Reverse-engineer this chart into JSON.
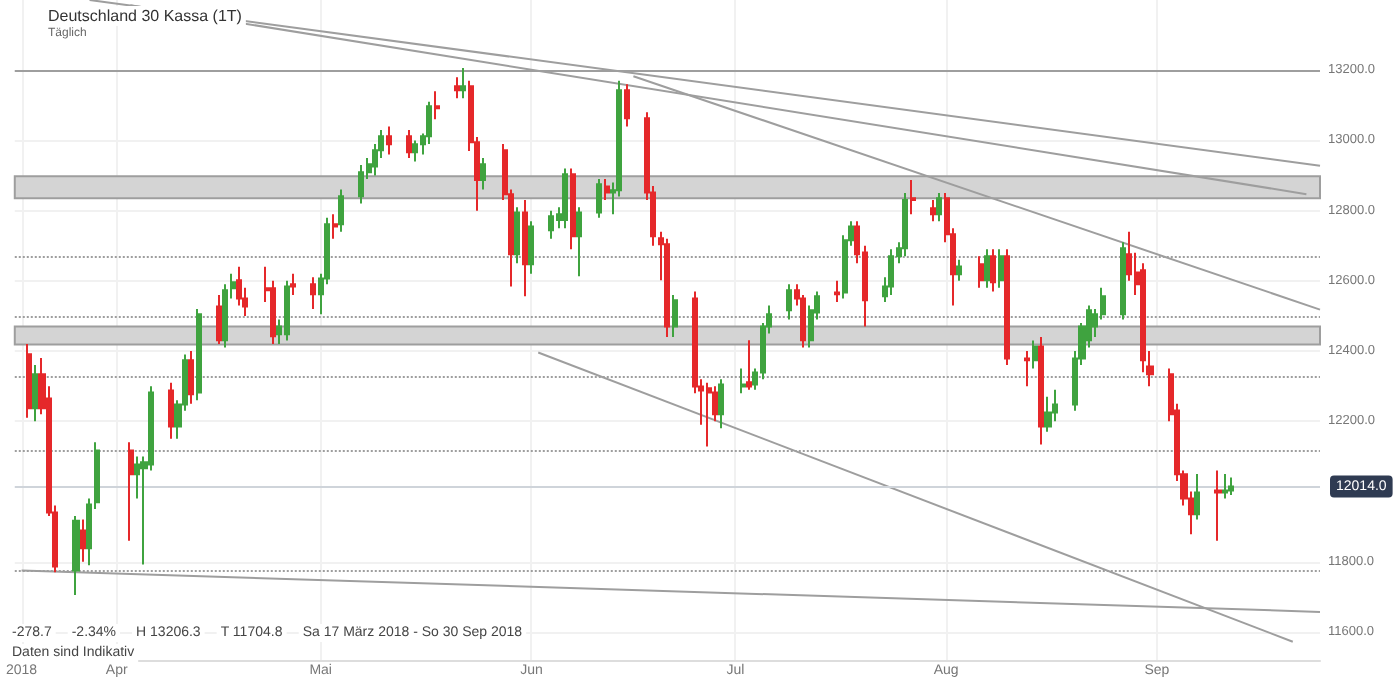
{
  "chart_data": {
    "type": "candlestick",
    "title": "Deutschland 30 Kassa (1T)",
    "subtitle": "Täglich",
    "annotations": [
      "-278.7",
      "-2.34%",
      "H 13206.3",
      "T 11704.8",
      "Sa 17 März 2018 - So 30 Sep 2018",
      "Daten sind Indikativ"
    ],
    "xlim": [
      "2018-03-17",
      "2018-09-25"
    ],
    "xticks": [
      {
        "value": "2018-03-18",
        "label": "2018"
      },
      {
        "value": "2018-04-01",
        "label": "Apr"
      },
      {
        "value": "2018-05-01",
        "label": "Mai"
      },
      {
        "value": "2018-06-01",
        "label": "Jun"
      },
      {
        "value": "2018-07-01",
        "label": "Jul"
      },
      {
        "value": "2018-08-01",
        "label": "Aug"
      },
      {
        "value": "2018-09-01",
        "label": "Sep"
      }
    ],
    "ylim": [
      11520,
      13400
    ],
    "yticks": [
      {
        "value": 11600,
        "label": "11600.0"
      },
      {
        "value": 11800,
        "label": "11800.0"
      },
      {
        "value": 12200,
        "label": "12200.0"
      },
      {
        "value": 12400,
        "label": "12400.0"
      },
      {
        "value": 12600,
        "label": "12600.0"
      },
      {
        "value": 12800,
        "label": "12800.0"
      },
      {
        "value": 13000,
        "label": "13000.0"
      },
      {
        "value": 13200,
        "label": "13200.0"
      }
    ],
    "grid": true,
    "series": [
      {
        "x": [
          "2018-03-19",
          "2018-03-20",
          "2018-03-21",
          "2018-03-22",
          "2018-03-23",
          "2018-03-26",
          "2018-03-27",
          "2018-03-28",
          "2018-03-29",
          "2018-04-03",
          "2018-04-04",
          "2018-04-05",
          "2018-04-06",
          "2018-04-09",
          "2018-04-10",
          "2018-04-11",
          "2018-04-12",
          "2018-04-13",
          "2018-04-16",
          "2018-04-17",
          "2018-04-18",
          "2018-04-19",
          "2018-04-20",
          "2018-04-23",
          "2018-04-24",
          "2018-04-25",
          "2018-04-26",
          "2018-04-27",
          "2018-04-30",
          "2018-05-01",
          "2018-05-02",
          "2018-05-03",
          "2018-05-04",
          "2018-05-07",
          "2018-05-08",
          "2018-05-09",
          "2018-05-10",
          "2018-05-11",
          "2018-05-14",
          "2018-05-15",
          "2018-05-16",
          "2018-05-17",
          "2018-05-18",
          "2018-05-21",
          "2018-05-22",
          "2018-05-23",
          "2018-05-24",
          "2018-05-25",
          "2018-05-28",
          "2018-05-29",
          "2018-05-30",
          "2018-05-31",
          "2018-06-01",
          "2018-06-04",
          "2018-06-05",
          "2018-06-06",
          "2018-06-07",
          "2018-06-08",
          "2018-06-11",
          "2018-06-12",
          "2018-06-13",
          "2018-06-14",
          "2018-06-15",
          "2018-06-18",
          "2018-06-19",
          "2018-06-20",
          "2018-06-21",
          "2018-06-22",
          "2018-06-25",
          "2018-06-26",
          "2018-06-27",
          "2018-06-28",
          "2018-06-29",
          "2018-07-02",
          "2018-07-03",
          "2018-07-04",
          "2018-07-05",
          "2018-07-06",
          "2018-07-09",
          "2018-07-10",
          "2018-07-11",
          "2018-07-12",
          "2018-07-13",
          "2018-07-16",
          "2018-07-17",
          "2018-07-18",
          "2018-07-19",
          "2018-07-20",
          "2018-07-23",
          "2018-07-24",
          "2018-07-25",
          "2018-07-26",
          "2018-07-27",
          "2018-07-30",
          "2018-07-31",
          "2018-08-01",
          "2018-08-02",
          "2018-08-03",
          "2018-08-06",
          "2018-08-07",
          "2018-08-08",
          "2018-08-09",
          "2018-08-10",
          "2018-08-13",
          "2018-08-14",
          "2018-08-15",
          "2018-08-16",
          "2018-08-17",
          "2018-08-20",
          "2018-08-21",
          "2018-08-22",
          "2018-08-23",
          "2018-08-24",
          "2018-08-27",
          "2018-08-28",
          "2018-08-29",
          "2018-08-30",
          "2018-08-31",
          "2018-09-03",
          "2018-09-04",
          "2018-09-05",
          "2018-09-06",
          "2018-09-07",
          "2018-09-10",
          "2018-09-11",
          "2018-09-12"
        ],
        "ohlc": [
          [
            12391,
            12420,
            12210,
            12237
          ],
          [
            12237,
            12360,
            12200,
            12334
          ],
          [
            12334,
            12380,
            12220,
            12237
          ],
          [
            12265,
            12300,
            11930,
            11940
          ],
          [
            11940,
            11960,
            11770,
            11786
          ],
          [
            11775,
            11930,
            11705,
            11917
          ],
          [
            11889,
            11920,
            11800,
            11838
          ],
          [
            11838,
            11980,
            11790,
            11963
          ],
          [
            11969,
            12140,
            11950,
            12117
          ],
          [
            12117,
            12140,
            11860,
            12049
          ],
          [
            12049,
            12100,
            11980,
            12077
          ],
          [
            12066,
            12100,
            11792,
            12083
          ],
          [
            12077,
            12300,
            12060,
            12282
          ],
          [
            12288,
            12310,
            12150,
            12185
          ],
          [
            12185,
            12260,
            12150,
            12248
          ],
          [
            12248,
            12390,
            12230,
            12374
          ],
          [
            12374,
            12400,
            12250,
            12277
          ],
          [
            12282,
            12520,
            12260,
            12505
          ],
          [
            12527,
            12560,
            12420,
            12431
          ],
          [
            12431,
            12590,
            12410,
            12573
          ],
          [
            12579,
            12620,
            12550,
            12596
          ],
          [
            12602,
            12640,
            12530,
            12550
          ],
          [
            12550,
            12580,
            12500,
            12527
          ],
          [
            12579,
            12640,
            12540,
            12573
          ],
          [
            12579,
            12600,
            12420,
            12442
          ],
          [
            12448,
            12490,
            12420,
            12470
          ],
          [
            12448,
            12600,
            12430,
            12584
          ],
          [
            12590,
            12620,
            12560,
            12584
          ],
          [
            12590,
            12610,
            12520,
            12562
          ],
          [
            12562,
            12620,
            12505,
            12607
          ],
          [
            12607,
            12780,
            12590,
            12761
          ],
          [
            12761,
            12790,
            12720,
            12755
          ],
          [
            12761,
            12860,
            12740,
            12841
          ],
          [
            12841,
            12930,
            12820,
            12909
          ],
          [
            12909,
            12950,
            12890,
            12932
          ],
          [
            12926,
            12990,
            12900,
            12972
          ],
          [
            12972,
            13030,
            12950,
            13012
          ],
          [
            13012,
            13040,
            12960,
            12989
          ],
          [
            13012,
            13030,
            12950,
            12966
          ],
          [
            12966,
            13000,
            12940,
            12989
          ],
          [
            12989,
            13020,
            12960,
            13012
          ],
          [
            13012,
            13110,
            12990,
            13097
          ],
          [
            13097,
            13140,
            13060,
            13092
          ],
          [
            13154,
            13180,
            13120,
            13143
          ],
          [
            13143,
            13206,
            13120,
            13154
          ],
          [
            13154,
            13170,
            12970,
            12995
          ],
          [
            12995,
            13010,
            12800,
            12887
          ],
          [
            12887,
            12950,
            12860,
            12932
          ],
          [
            12972,
            12990,
            12830,
            12847
          ],
          [
            12847,
            12860,
            12584,
            12676
          ],
          [
            12676,
            12810,
            12650,
            12795
          ],
          [
            12795,
            12830,
            12556,
            12647
          ],
          [
            12647,
            12770,
            12620,
            12755
          ],
          [
            12744,
            12800,
            12720,
            12784
          ],
          [
            12773,
            12810,
            12750,
            12790
          ],
          [
            12773,
            12920,
            12750,
            12904
          ],
          [
            12904,
            12920,
            12690,
            12727
          ],
          [
            12727,
            12810,
            12613,
            12795
          ],
          [
            12795,
            12890,
            12780,
            12875
          ],
          [
            12869,
            12890,
            12830,
            12852
          ],
          [
            12852,
            12880,
            12790,
            12858
          ],
          [
            12858,
            13170,
            12840,
            13143
          ],
          [
            13143,
            13160,
            13040,
            13063
          ],
          [
            13063,
            13080,
            12830,
            12852
          ],
          [
            12852,
            12870,
            12700,
            12727
          ],
          [
            12721,
            12740,
            12602,
            12704
          ],
          [
            12704,
            12720,
            12440,
            12470
          ],
          [
            12470,
            12560,
            12440,
            12545
          ],
          [
            12550,
            12570,
            12280,
            12299
          ],
          [
            12299,
            12320,
            12190,
            12288
          ],
          [
            12294,
            12310,
            12128,
            12282
          ],
          [
            12282,
            12300,
            12200,
            12220
          ],
          [
            12220,
            12320,
            12180,
            12305
          ],
          [
            12299,
            12350,
            12280,
            12305
          ],
          [
            12311,
            12431,
            12290,
            12299
          ],
          [
            12305,
            12350,
            12290,
            12339
          ],
          [
            12339,
            12480,
            12320,
            12470
          ],
          [
            12470,
            12530,
            12450,
            12505
          ],
          [
            12516,
            12590,
            12490,
            12573
          ],
          [
            12573,
            12590,
            12530,
            12550
          ],
          [
            12550,
            12560,
            12410,
            12431
          ],
          [
            12431,
            12530,
            12410,
            12516
          ],
          [
            12510,
            12570,
            12490,
            12556
          ],
          [
            12567,
            12600,
            12540,
            12562
          ],
          [
            12567,
            12730,
            12550,
            12716
          ],
          [
            12716,
            12770,
            12700,
            12755
          ],
          [
            12755,
            12770,
            12650,
            12676
          ],
          [
            12681,
            12700,
            12470,
            12545
          ],
          [
            12556,
            12610,
            12540,
            12584
          ],
          [
            12584,
            12690,
            12560,
            12670
          ],
          [
            12670,
            12710,
            12650,
            12693
          ],
          [
            12693,
            12850,
            12670,
            12830
          ],
          [
            12835,
            12887,
            12790,
            12830
          ],
          [
            12807,
            12830,
            12770,
            12790
          ],
          [
            12790,
            12850,
            12770,
            12835
          ],
          [
            12835,
            12850,
            12710,
            12733
          ],
          [
            12733,
            12750,
            12530,
            12619
          ],
          [
            12619,
            12660,
            12600,
            12641
          ],
          [
            12647,
            12670,
            12580,
            12602
          ],
          [
            12602,
            12690,
            12580,
            12670
          ],
          [
            12670,
            12690,
            12570,
            12596
          ],
          [
            12602,
            12690,
            12580,
            12670
          ],
          [
            12670,
            12690,
            12360,
            12379
          ],
          [
            12379,
            12400,
            12300,
            12374
          ],
          [
            12374,
            12430,
            12350,
            12413
          ],
          [
            12413,
            12440,
            12134,
            12185
          ],
          [
            12185,
            12270,
            12170,
            12225
          ],
          [
            12225,
            12290,
            12200,
            12248
          ],
          [
            12248,
            12400,
            12230,
            12379
          ],
          [
            12379,
            12480,
            12360,
            12470
          ],
          [
            12431,
            12530,
            12410,
            12516
          ],
          [
            12470,
            12520,
            12440,
            12505
          ],
          [
            12505,
            12580,
            12490,
            12556
          ],
          [
            12505,
            12710,
            12490,
            12693
          ],
          [
            12676,
            12740,
            12600,
            12619
          ],
          [
            12624,
            12680,
            12560,
            12590
          ],
          [
            12630,
            12650,
            12340,
            12374
          ],
          [
            12356,
            12400,
            12300,
            12334
          ],
          [
            12334,
            12350,
            12200,
            12220
          ],
          [
            12231,
            12250,
            12030,
            12049
          ],
          [
            12049,
            12060,
            11960,
            11980
          ],
          [
            11980,
            12000,
            11878,
            11935
          ],
          [
            11935,
            12050,
            11920,
            11997
          ],
          [
            12003,
            12060,
            11860,
            11997
          ],
          [
            11997,
            12050,
            11980,
            12003
          ],
          [
            12003,
            12040,
            11990,
            12014
          ]
        ],
        "colors": [
          "#e5282a",
          "#3fa33f",
          "#e5282a",
          "#e5282a",
          "#e5282a",
          "#3fa33f",
          "#e5282a",
          "#3fa33f",
          "#3fa33f",
          "#e5282a",
          "#3fa33f",
          "#3fa33f",
          "#3fa33f",
          "#e5282a",
          "#3fa33f",
          "#3fa33f",
          "#e5282a",
          "#3fa33f",
          "#e5282a",
          "#3fa33f",
          "#3fa33f",
          "#e5282a",
          "#e5282a",
          "#e5282a",
          "#e5282a",
          "#3fa33f",
          "#3fa33f",
          "#e5282a",
          "#e5282a",
          "#3fa33f",
          "#3fa33f",
          "#e5282a",
          "#3fa33f",
          "#3fa33f",
          "#3fa33f",
          "#3fa33f",
          "#3fa33f",
          "#e5282a",
          "#e5282a",
          "#3fa33f",
          "#3fa33f",
          "#3fa33f",
          "#e5282a",
          "#e5282a",
          "#3fa33f",
          "#e5282a",
          "#e5282a",
          "#3fa33f",
          "#e5282a",
          "#e5282a",
          "#3fa33f",
          "#e5282a",
          "#3fa33f",
          "#3fa33f",
          "#3fa33f",
          "#3fa33f",
          "#e5282a",
          "#3fa33f",
          "#3fa33f",
          "#e5282a",
          "#3fa33f",
          "#3fa33f",
          "#e5282a",
          "#e5282a",
          "#e5282a",
          "#e5282a",
          "#e5282a",
          "#3fa33f",
          "#e5282a",
          "#e5282a",
          "#e5282a",
          "#e5282a",
          "#3fa33f",
          "#3fa33f",
          "#e5282a",
          "#3fa33f",
          "#3fa33f",
          "#3fa33f",
          "#3fa33f",
          "#e5282a",
          "#e5282a",
          "#3fa33f",
          "#3fa33f",
          "#e5282a",
          "#3fa33f",
          "#3fa33f",
          "#e5282a",
          "#e5282a",
          "#3fa33f",
          "#3fa33f",
          "#3fa33f",
          "#3fa33f",
          "#e5282a",
          "#e5282a",
          "#3fa33f",
          "#e5282a",
          "#e5282a",
          "#3fa33f",
          "#e5282a",
          "#3fa33f",
          "#e5282a",
          "#3fa33f",
          "#e5282a",
          "#e5282a",
          "#3fa33f",
          "#e5282a",
          "#3fa33f",
          "#3fa33f",
          "#3fa33f",
          "#3fa33f",
          "#3fa33f",
          "#3fa33f",
          "#3fa33f",
          "#3fa33f",
          "#e5282a",
          "#e5282a",
          "#e5282a",
          "#e5282a",
          "#e5282a",
          "#e5282a",
          "#e5282a",
          "#e5282a",
          "#3fa33f",
          "#e5282a",
          "#3fa33f",
          "#3fa33f"
        ]
      },
      {
        "type": "line",
        "color": "#9e9e9e",
        "x": [
          "2018-03-28",
          "2018-09-25"
        ],
        "values": [
          13400,
          12928
        ]
      },
      {
        "type": "line",
        "color": "#9e9e9e",
        "x": [
          "2018-04-03",
          "2018-09-23"
        ],
        "values": [
          13385,
          12847
        ]
      },
      {
        "type": "line",
        "color": "#9e9e9e",
        "x": [
          "2018-06-16",
          "2018-09-25"
        ],
        "values": [
          13183,
          12518
        ]
      },
      {
        "type": "line",
        "color": "#9e9e9e",
        "x": [
          "2018-06-02",
          "2018-09-21"
        ],
        "values": [
          12396,
          11572
        ]
      },
      {
        "type": "line",
        "color": "#9e9e9e",
        "x": [
          "2018-03-18",
          "2018-09-25"
        ],
        "values": [
          11775,
          11657
        ]
      }
    ],
    "ref_lines": [
      {
        "axis": "y",
        "value": 13200,
        "color": "#9e9e9e",
        "line_style": "solid"
      },
      {
        "axis": "y",
        "value": 12670,
        "color": "#9e9e9e",
        "line_style": "dotted"
      },
      {
        "axis": "y",
        "value": 12499,
        "color": "#9e9e9e",
        "line_style": "dotted"
      },
      {
        "axis": "y",
        "value": 12328,
        "color": "#9e9e9e",
        "line_style": "dotted"
      },
      {
        "axis": "y",
        "value": 12117,
        "color": "#9e9e9e",
        "line_style": "dotted"
      },
      {
        "axis": "y",
        "value": 11775,
        "color": "#9e9e9e",
        "line_style": "dotted"
      },
      {
        "axis": "y",
        "value": 12014,
        "label": "12014.0",
        "color": "#cfd4da",
        "line_style": "solid"
      }
    ],
    "bands": [
      {
        "axis": "y",
        "from": 12835,
        "to": 12898,
        "color": "#d4d4d4"
      },
      {
        "axis": "y",
        "from": 12419,
        "to": 12470,
        "color": "#d4d4d4"
      }
    ]
  }
}
